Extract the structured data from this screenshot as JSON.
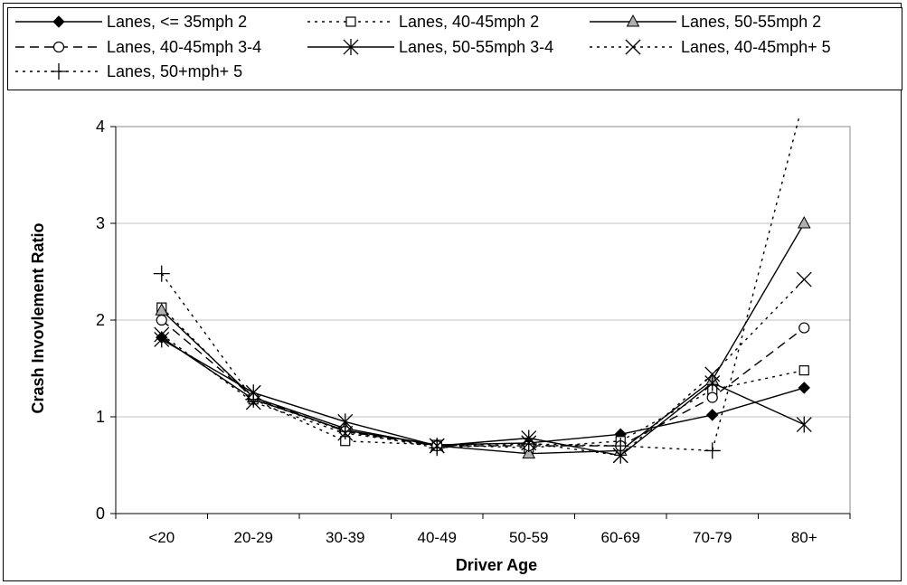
{
  "chart_data": {
    "type": "line",
    "xlabel": "Driver Age",
    "ylabel": "Crash Invovlement Ratio",
    "categories": [
      "<20",
      "20-29",
      "30-39",
      "40-49",
      "50-59",
      "60-69",
      "70-79",
      "80+"
    ],
    "ylim": [
      0,
      4
    ],
    "yticks": [
      0,
      1,
      2,
      3,
      4
    ],
    "grid": true,
    "legend_position": "top",
    "series": [
      {
        "name": "Lanes, <= 35mph 2",
        "values": [
          1.82,
          1.18,
          0.86,
          0.71,
          0.73,
          0.82,
          1.02,
          1.3
        ],
        "marker": "diamond-filled",
        "line": "solid"
      },
      {
        "name": "Lanes, 40-45mph 2",
        "values": [
          2.13,
          1.18,
          0.75,
          0.71,
          0.68,
          0.75,
          1.28,
          1.48
        ],
        "marker": "square-open",
        "line": "dotted"
      },
      {
        "name": "Lanes, 50-55mph 2",
        "values": [
          2.1,
          1.2,
          0.88,
          0.7,
          0.62,
          0.65,
          1.38,
          3.0
        ],
        "marker": "triangle-gray",
        "line": "solid"
      },
      {
        "name": "Lanes, 40-45mph 3-4",
        "values": [
          2.0,
          1.2,
          0.85,
          0.7,
          0.7,
          0.7,
          1.2,
          1.92
        ],
        "marker": "circle-open",
        "line": "dashed"
      },
      {
        "name": "Lanes, 50-55mph 3-4",
        "values": [
          1.8,
          1.25,
          0.95,
          0.7,
          0.78,
          0.6,
          1.35,
          0.92
        ],
        "marker": "asterisk",
        "line": "solid"
      },
      {
        "name": "Lanes, 40-45mph+ 5",
        "values": [
          1.85,
          1.15,
          0.83,
          0.7,
          0.73,
          0.6,
          1.44,
          2.42
        ],
        "marker": "x",
        "line": "dotted"
      },
      {
        "name": "Lanes, 50+mph+ 5",
        "values": [
          2.48,
          1.18,
          0.85,
          0.68,
          0.72,
          0.7,
          0.65,
          4.3
        ],
        "marker": "plus",
        "line": "dotted"
      }
    ]
  }
}
